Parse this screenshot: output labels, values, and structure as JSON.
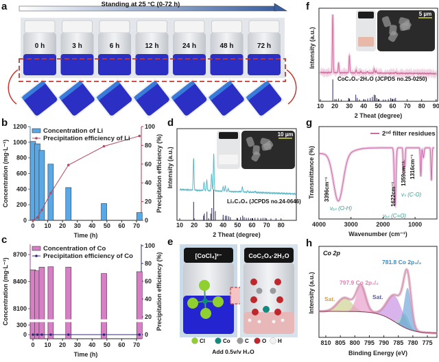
{
  "panel_labels": {
    "a": "a",
    "b": "b",
    "c": "c",
    "d": "d",
    "e": "e",
    "f": "f",
    "g": "g",
    "h": "h"
  },
  "panel_a": {
    "title": "Standing at 25 °C (0-72 h)",
    "vial_labels": [
      "0 h",
      "3 h",
      "6 h",
      "12 h",
      "24 h",
      "48 h",
      "72 h"
    ],
    "liquid_color": "#2b2fc4",
    "highlight_color": "#c8352e"
  },
  "panel_e": {
    "left_title": "[CoCl₄]²⁻",
    "right_title": "CoC₂O₄·2H₂O",
    "legend": [
      "Cl",
      "Co",
      "C",
      "O",
      "H"
    ],
    "legend_colors": [
      "#8fcf2f",
      "#138a7e",
      "#9a9a9a",
      "#c0272d",
      "#f2f2f2"
    ],
    "caption": "Add 0.5v/v H₂O"
  },
  "chart_data": [
    {
      "panel": "b",
      "type": "bar+line",
      "x": [
        0,
        3,
        6,
        12,
        24,
        48,
        72
      ],
      "xlabel": "Time (h)",
      "ylabel": "Concentration (mg·L⁻¹)",
      "y2label": "Precipitation efficiency (%)",
      "xticks": [
        0,
        10,
        20,
        30,
        40,
        50,
        60,
        70
      ],
      "yticks": [
        0,
        200,
        400,
        600,
        800,
        1000,
        1200
      ],
      "y2ticks": [
        0,
        20,
        40,
        60,
        80,
        100
      ],
      "ylim": [
        0,
        1200
      ],
      "y2lim": [
        0,
        100
      ],
      "legend": "top-left",
      "series": [
        {
          "name": "Concentration of Li",
          "type": "bar",
          "axis": "left",
          "color": "#5aa9e6",
          "values": [
            1010,
            980,
            895,
            720,
            420,
            215,
            100
          ]
        },
        {
          "name": "Precipitation efficiency of Li",
          "type": "line",
          "axis": "right",
          "color": "#b5475f",
          "values": [
            0,
            3,
            11,
            29,
            59,
            79,
            90
          ]
        }
      ]
    },
    {
      "panel": "c",
      "type": "bar+line",
      "x": [
        0,
        3,
        6,
        12,
        24,
        48,
        72
      ],
      "xlabel": "Time (h)",
      "ylabel": "Concentration (mg·L⁻¹)",
      "y2label": "Precipitation efficiency (%)",
      "xticks": [
        0,
        10,
        20,
        30,
        40,
        50,
        60,
        70
      ],
      "yticks": [
        0,
        300,
        8100,
        8400,
        8700
      ],
      "y2ticks": [
        0,
        20,
        40,
        60,
        80,
        100
      ],
      "ylim": [
        0,
        8750
      ],
      "y_break": [
        350,
        8000
      ],
      "y2lim": [
        0,
        100
      ],
      "legend": "top-left",
      "series": [
        {
          "name": "Concentration of Co",
          "type": "bar",
          "axis": "left",
          "color": "#d77fc4",
          "values": [
            8530,
            8520,
            8560,
            8565,
            8560,
            8490,
            8510
          ]
        },
        {
          "name": "Precipitation efficiency of Co",
          "type": "line",
          "axis": "right",
          "color": "#2a2a7a",
          "values": [
            0,
            0,
            0,
            0,
            0,
            0,
            0
          ]
        }
      ]
    },
    {
      "panel": "d",
      "type": "line",
      "xlabel": "2 Theat (degree)",
      "ylabel": "Intensity (a.u.)",
      "xticks": [
        10,
        20,
        30,
        40,
        50,
        60,
        70,
        80
      ],
      "xlim": [
        10,
        90
      ],
      "inset_scale": "10 µm",
      "measured": {
        "color": "#5bb8c8",
        "peaks": [
          [
            19.6,
            85
          ],
          [
            26.8,
            22
          ],
          [
            28.7,
            28
          ],
          [
            32.0,
            45
          ],
          [
            33.5,
            100
          ],
          [
            40.0,
            12
          ],
          [
            41.5,
            15
          ],
          [
            43.5,
            8
          ],
          [
            53.3,
            14
          ],
          [
            57,
            4
          ],
          [
            62,
            3
          ]
        ]
      },
      "reference": {
        "name": "Li₂C₂O₄ (JCPDS no.24-0646)",
        "color": "#23235e",
        "peaks": [
          [
            19.6,
            60
          ],
          [
            26.5,
            15
          ],
          [
            27.0,
            22
          ],
          [
            28.8,
            28
          ],
          [
            31.5,
            22
          ],
          [
            32.2,
            40
          ],
          [
            33.5,
            100
          ],
          [
            34.6,
            30
          ],
          [
            40,
            18
          ],
          [
            41.5,
            15
          ],
          [
            42.5,
            15
          ],
          [
            43.8,
            13
          ],
          [
            45,
            10
          ],
          [
            49.5,
            8
          ],
          [
            52,
            10
          ],
          [
            53.5,
            15
          ],
          [
            54.5,
            10
          ],
          [
            56,
            8
          ],
          [
            57.5,
            8
          ],
          [
            59,
            7
          ],
          [
            60.5,
            7
          ],
          [
            62,
            8
          ],
          [
            64,
            8
          ],
          [
            66,
            7
          ],
          [
            67.5,
            8
          ],
          [
            69,
            8
          ],
          [
            73,
            6
          ],
          [
            76.5,
            7
          ]
        ]
      }
    },
    {
      "panel": "f",
      "type": "line",
      "xlabel": "2 Theat (degree)",
      "ylabel": "Intensity (a.u.)",
      "xticks": [
        10,
        20,
        30,
        40,
        50,
        60,
        70,
        80,
        90
      ],
      "xlim": [
        10,
        90
      ],
      "inset_scale": "5 µm",
      "measured": {
        "color": "#d070a0",
        "peaks": [
          [
            18.6,
            100
          ],
          [
            22.6,
            17
          ],
          [
            30.1,
            30
          ],
          [
            34.7,
            5
          ],
          [
            38,
            3
          ],
          [
            42.5,
            3
          ],
          [
            47.2,
            7
          ],
          [
            48.5,
            4
          ],
          [
            62,
            2
          ]
        ]
      },
      "reference": {
        "name": "CoC₂O₄·2H₂O (JCPDS no.25-0250)",
        "color": "#23235e",
        "peaks": [
          [
            18.6,
            100
          ],
          [
            21,
            10
          ],
          [
            22.5,
            12
          ],
          [
            24.5,
            8
          ],
          [
            29.5,
            15
          ],
          [
            30.2,
            12
          ],
          [
            34.5,
            30
          ],
          [
            35.5,
            15
          ],
          [
            37,
            8
          ],
          [
            40,
            10
          ],
          [
            41,
            8
          ],
          [
            42.7,
            12
          ],
          [
            44.5,
            15
          ],
          [
            46,
            20
          ],
          [
            47.2,
            30
          ],
          [
            48,
            28
          ],
          [
            49,
            15
          ],
          [
            50.5,
            10
          ],
          [
            53.5,
            8
          ],
          [
            55,
            8
          ],
          [
            57,
            10
          ],
          [
            58.5,
            15
          ],
          [
            59.5,
            12
          ],
          [
            61,
            12
          ],
          [
            62,
            15
          ]
        ]
      }
    },
    {
      "panel": "g",
      "type": "line",
      "xlabel": "Wavenumber (cm⁻¹)",
      "ylabel": "Transmittance (%)",
      "xticks": [
        4000,
        3000,
        2000,
        1000
      ],
      "xlim": [
        4000,
        400
      ],
      "series_name": "2ⁿᵈ filter residues",
      "color": "#c76aa6",
      "bands": [
        {
          "wavenumber": 3396,
          "label": "3396cm⁻¹",
          "assignment": "νₐₛ (O-H)"
        },
        {
          "wavenumber": 1622,
          "label": "1622cm⁻¹",
          "assignment": "νₐₛ (C=O)"
        },
        {
          "wavenumber": 1359,
          "label": "1359cm⁻¹",
          "assignment": "νₛ (C-O)"
        },
        {
          "wavenumber": 1316,
          "label": "1316cm⁻¹",
          "assignment": ""
        }
      ],
      "dips": [
        [
          3396,
          58,
          150
        ],
        [
          1622,
          70,
          25
        ],
        [
          1359,
          30,
          15
        ],
        [
          1316,
          22,
          12
        ],
        [
          820,
          35,
          14
        ],
        [
          740,
          12,
          20
        ],
        [
          490,
          40,
          15
        ]
      ]
    },
    {
      "panel": "h",
      "type": "area",
      "title": "Co 2p",
      "xlabel": "Binding Energy (eV)",
      "ylabel": "Intensity (a.u.)",
      "xticks": [
        810,
        805,
        800,
        795,
        790,
        785,
        780,
        775
      ],
      "xlim": [
        812.4,
        771.5
      ],
      "annotations": {
        "p32": "781.8 Co 2p₃/₂",
        "p12": "797.9 Co 2p₁/₂",
        "sat1": "Sat.",
        "sat2": "Sat."
      },
      "components": [
        {
          "center": 803.5,
          "height": 20,
          "width": 2.5,
          "color": "#c9d08a"
        },
        {
          "center": 797.9,
          "height": 38,
          "width": 1.6,
          "color": "#e79ac8"
        },
        {
          "center": 786.3,
          "height": 38,
          "width": 2.6,
          "color": "#c58ae0"
        },
        {
          "center": 782.8,
          "height": 20,
          "width": 1.5,
          "color": "#9be0c0"
        },
        {
          "center": 781.8,
          "height": 60,
          "width": 1.2,
          "color": "#6aa0d8"
        }
      ],
      "envelope_color": "#d08aa8",
      "background_color": "#8a3050"
    }
  ]
}
